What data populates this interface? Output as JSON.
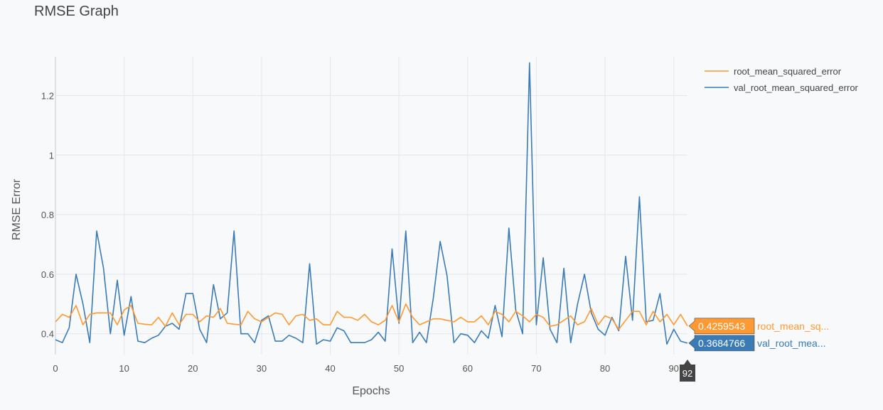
{
  "chart_data": {
    "type": "line",
    "title": "RMSE Graph",
    "xlabel": "Epochs",
    "ylabel": "RMSE Error",
    "xlim": [
      0,
      92
    ],
    "ylim": [
      0.33,
      1.33
    ],
    "grid": true,
    "legend_position": "top-right",
    "x_ticks": [
      "0",
      "10",
      "20",
      "30",
      "40",
      "50",
      "60",
      "70",
      "80",
      "90"
    ],
    "x_tick_values": [
      0,
      10,
      20,
      30,
      40,
      50,
      60,
      70,
      80,
      90
    ],
    "y_ticks": [
      "0.4",
      "0.6",
      "0.8",
      "1",
      "1.2"
    ],
    "y_tick_values": [
      0.4,
      0.6,
      0.8,
      1.0,
      1.2
    ],
    "x": [
      0,
      1,
      2,
      3,
      4,
      5,
      6,
      7,
      8,
      9,
      10,
      11,
      12,
      13,
      14,
      15,
      16,
      17,
      18,
      19,
      20,
      21,
      22,
      23,
      24,
      25,
      26,
      27,
      28,
      29,
      30,
      31,
      32,
      33,
      34,
      35,
      36,
      37,
      38,
      39,
      40,
      41,
      42,
      43,
      44,
      45,
      46,
      47,
      48,
      49,
      50,
      51,
      52,
      53,
      54,
      55,
      56,
      57,
      58,
      59,
      60,
      61,
      62,
      63,
      64,
      65,
      66,
      67,
      68,
      69,
      70,
      71,
      72,
      73,
      74,
      75,
      76,
      77,
      78,
      79,
      80,
      81,
      82,
      83,
      84,
      85,
      86,
      87,
      88,
      89,
      90,
      91,
      92
    ],
    "series": [
      {
        "name": "root_mean_squared_error",
        "color": "#ff9933",
        "values": [
          0.44,
          0.465,
          0.455,
          0.495,
          0.43,
          0.465,
          0.47,
          0.47,
          0.47,
          0.43,
          0.48,
          0.495,
          0.435,
          0.432,
          0.43,
          0.455,
          0.425,
          0.47,
          0.43,
          0.465,
          0.465,
          0.44,
          0.46,
          0.455,
          0.485,
          0.435,
          0.432,
          0.43,
          0.475,
          0.45,
          0.44,
          0.455,
          0.47,
          0.465,
          0.43,
          0.46,
          0.465,
          0.445,
          0.45,
          0.43,
          0.43,
          0.475,
          0.455,
          0.455,
          0.445,
          0.465,
          0.44,
          0.43,
          0.445,
          0.495,
          0.44,
          0.5,
          0.455,
          0.43,
          0.44,
          0.45,
          0.45,
          0.445,
          0.44,
          0.455,
          0.44,
          0.44,
          0.46,
          0.43,
          0.475,
          0.465,
          0.44,
          0.475,
          0.46,
          0.44,
          0.465,
          0.455,
          0.425,
          0.43,
          0.445,
          0.46,
          0.43,
          0.44,
          0.485,
          0.43,
          0.46,
          0.45,
          0.415,
          0.445,
          0.475,
          0.475,
          0.43,
          0.475,
          0.44,
          0.465,
          0.43,
          0.465,
          0.4259543
        ]
      },
      {
        "name": "val_root_mean_squared_error",
        "color": "#3a7bb5",
        "values": [
          0.38,
          0.37,
          0.42,
          0.6,
          0.5,
          0.37,
          0.745,
          0.62,
          0.4,
          0.58,
          0.395,
          0.525,
          0.375,
          0.37,
          0.385,
          0.395,
          0.425,
          0.435,
          0.415,
          0.535,
          0.535,
          0.415,
          0.37,
          0.565,
          0.45,
          0.47,
          0.745,
          0.4,
          0.4,
          0.37,
          0.445,
          0.46,
          0.375,
          0.375,
          0.395,
          0.385,
          0.37,
          0.635,
          0.365,
          0.38,
          0.375,
          0.42,
          0.41,
          0.37,
          0.37,
          0.37,
          0.38,
          0.405,
          0.375,
          0.685,
          0.435,
          0.745,
          0.37,
          0.405,
          0.37,
          0.52,
          0.71,
          0.595,
          0.37,
          0.4,
          0.395,
          0.37,
          0.41,
          0.385,
          0.495,
          0.39,
          0.755,
          0.48,
          0.4,
          1.31,
          0.43,
          0.655,
          0.415,
          0.37,
          0.62,
          0.37,
          0.5,
          0.6,
          0.47,
          0.415,
          0.395,
          0.455,
          0.41,
          0.66,
          0.445,
          0.86,
          0.44,
          0.445,
          0.535,
          0.365,
          0.415,
          0.375,
          0.3684766
        ]
      }
    ],
    "hover": {
      "x_label": "92",
      "items": [
        {
          "value_text": "0.4259543",
          "name_text": "root_mean_sq...",
          "color": "#ff9933"
        },
        {
          "value_text": "0.3684766",
          "name_text": "val_root_mea...",
          "color": "#3a7bb5"
        }
      ]
    }
  }
}
